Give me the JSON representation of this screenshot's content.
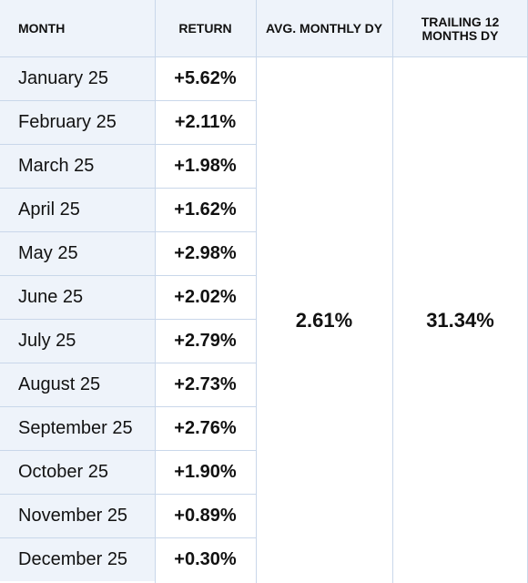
{
  "header": {
    "month": "MONTH",
    "return": "RETURN",
    "avg_monthly_dy": "AVG. MONTHLY DY",
    "trailing_12_months_dy": "TRAILING 12 MONTHS DY"
  },
  "rows": [
    {
      "month": "January 25",
      "return": "+5.62%"
    },
    {
      "month": "February 25",
      "return": "+2.11%"
    },
    {
      "month": "March 25",
      "return": "+1.98%"
    },
    {
      "month": "April 25",
      "return": "+1.62%"
    },
    {
      "month": "May 25",
      "return": "+2.98%"
    },
    {
      "month": "June 25",
      "return": "+2.02%"
    },
    {
      "month": "July 25",
      "return": "+2.79%"
    },
    {
      "month": "August 25",
      "return": "+2.73%"
    },
    {
      "month": "September 25",
      "return": "+2.76%"
    },
    {
      "month": "October 25",
      "return": "+1.90%"
    },
    {
      "month": "November 25",
      "return": "+0.89%"
    },
    {
      "month": "December 25",
      "return": "+0.30%"
    }
  ],
  "summary": {
    "avg_monthly_dy": "2.61%",
    "trailing_12_months_dy": "31.34%"
  },
  "colors": {
    "header_bg": "#eef3fa",
    "month_bg": "#eef3fa",
    "border": "#c9d7ea",
    "text": "#111111"
  }
}
